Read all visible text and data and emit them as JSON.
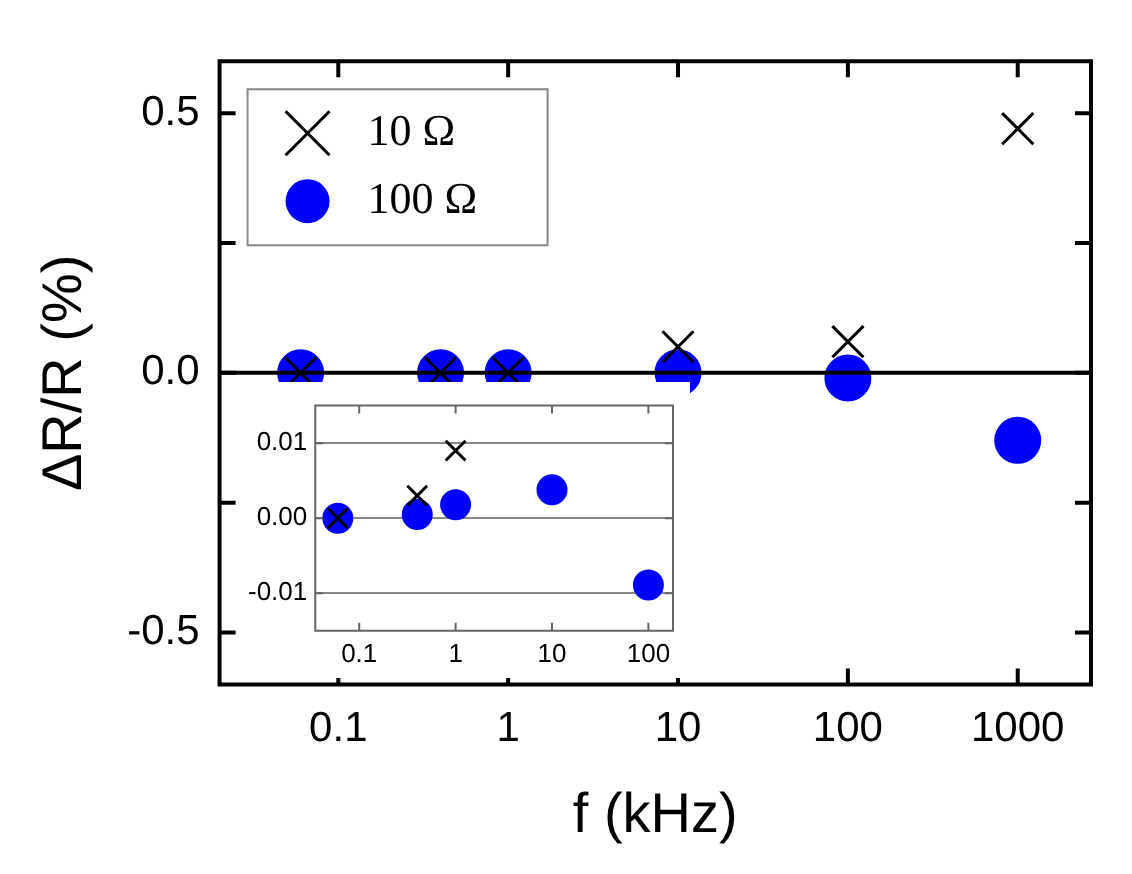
{
  "chart_data": [
    {
      "type": "scatter",
      "xlabel": "f (kHz)",
      "ylabel": "ΔR/R (%)",
      "log": "x",
      "xlim": [
        0.02,
        2700
      ],
      "xticks": [
        0.1,
        1,
        10,
        100,
        1000
      ],
      "ylim": [
        -0.6,
        0.6
      ],
      "yticks": [
        -0.5,
        {
          "value": -0.25,
          "label": null
        },
        {
          "value": 0,
          "label": "0.0"
        },
        {
          "value": 0.25,
          "label": null
        },
        0.5
      ],
      "grid": false,
      "legend": "top left",
      "ref_lines": [
        {
          "axis": "y",
          "value": 0,
          "color": "#000000"
        }
      ],
      "series": [
        {
          "name": "10 Ω",
          "color": "#000000",
          "marker": "cross",
          "x": [
            0.06,
            0.4,
            1,
            10,
            100,
            1000
          ],
          "values": [
            0,
            0,
            0,
            0.05,
            0.06,
            0.47
          ]
        },
        {
          "name": "100 Ω",
          "color": "#0000ff",
          "marker": "circle",
          "x": [
            0.06,
            0.4,
            1,
            10,
            100,
            1000
          ],
          "values": [
            0,
            0,
            0,
            0,
            -0.01,
            -0.13
          ]
        }
      ]
    },
    {
      "type": "scatter",
      "log": "x",
      "xlim": [
        0.035,
        180
      ],
      "xticks": [
        0.1,
        1,
        10,
        100
      ],
      "ylim": [
        -0.015,
        0.015
      ],
      "yticks": [
        -0.01,
        {
          "value": 0,
          "label": "0.00"
        },
        0.01
      ],
      "grid": "y",
      "series": [
        {
          "color": "#000000",
          "marker": "cross",
          "x": [
            0.06,
            0.4,
            1
          ],
          "values": [
            0,
            0.003,
            0.009
          ]
        },
        {
          "color": "#0000ff",
          "marker": "circle",
          "x": [
            0.06,
            0.4,
            1,
            10,
            100
          ],
          "values": [
            0,
            0.0005,
            0.0018,
            0.0038,
            -0.0089
          ]
        }
      ]
    }
  ]
}
